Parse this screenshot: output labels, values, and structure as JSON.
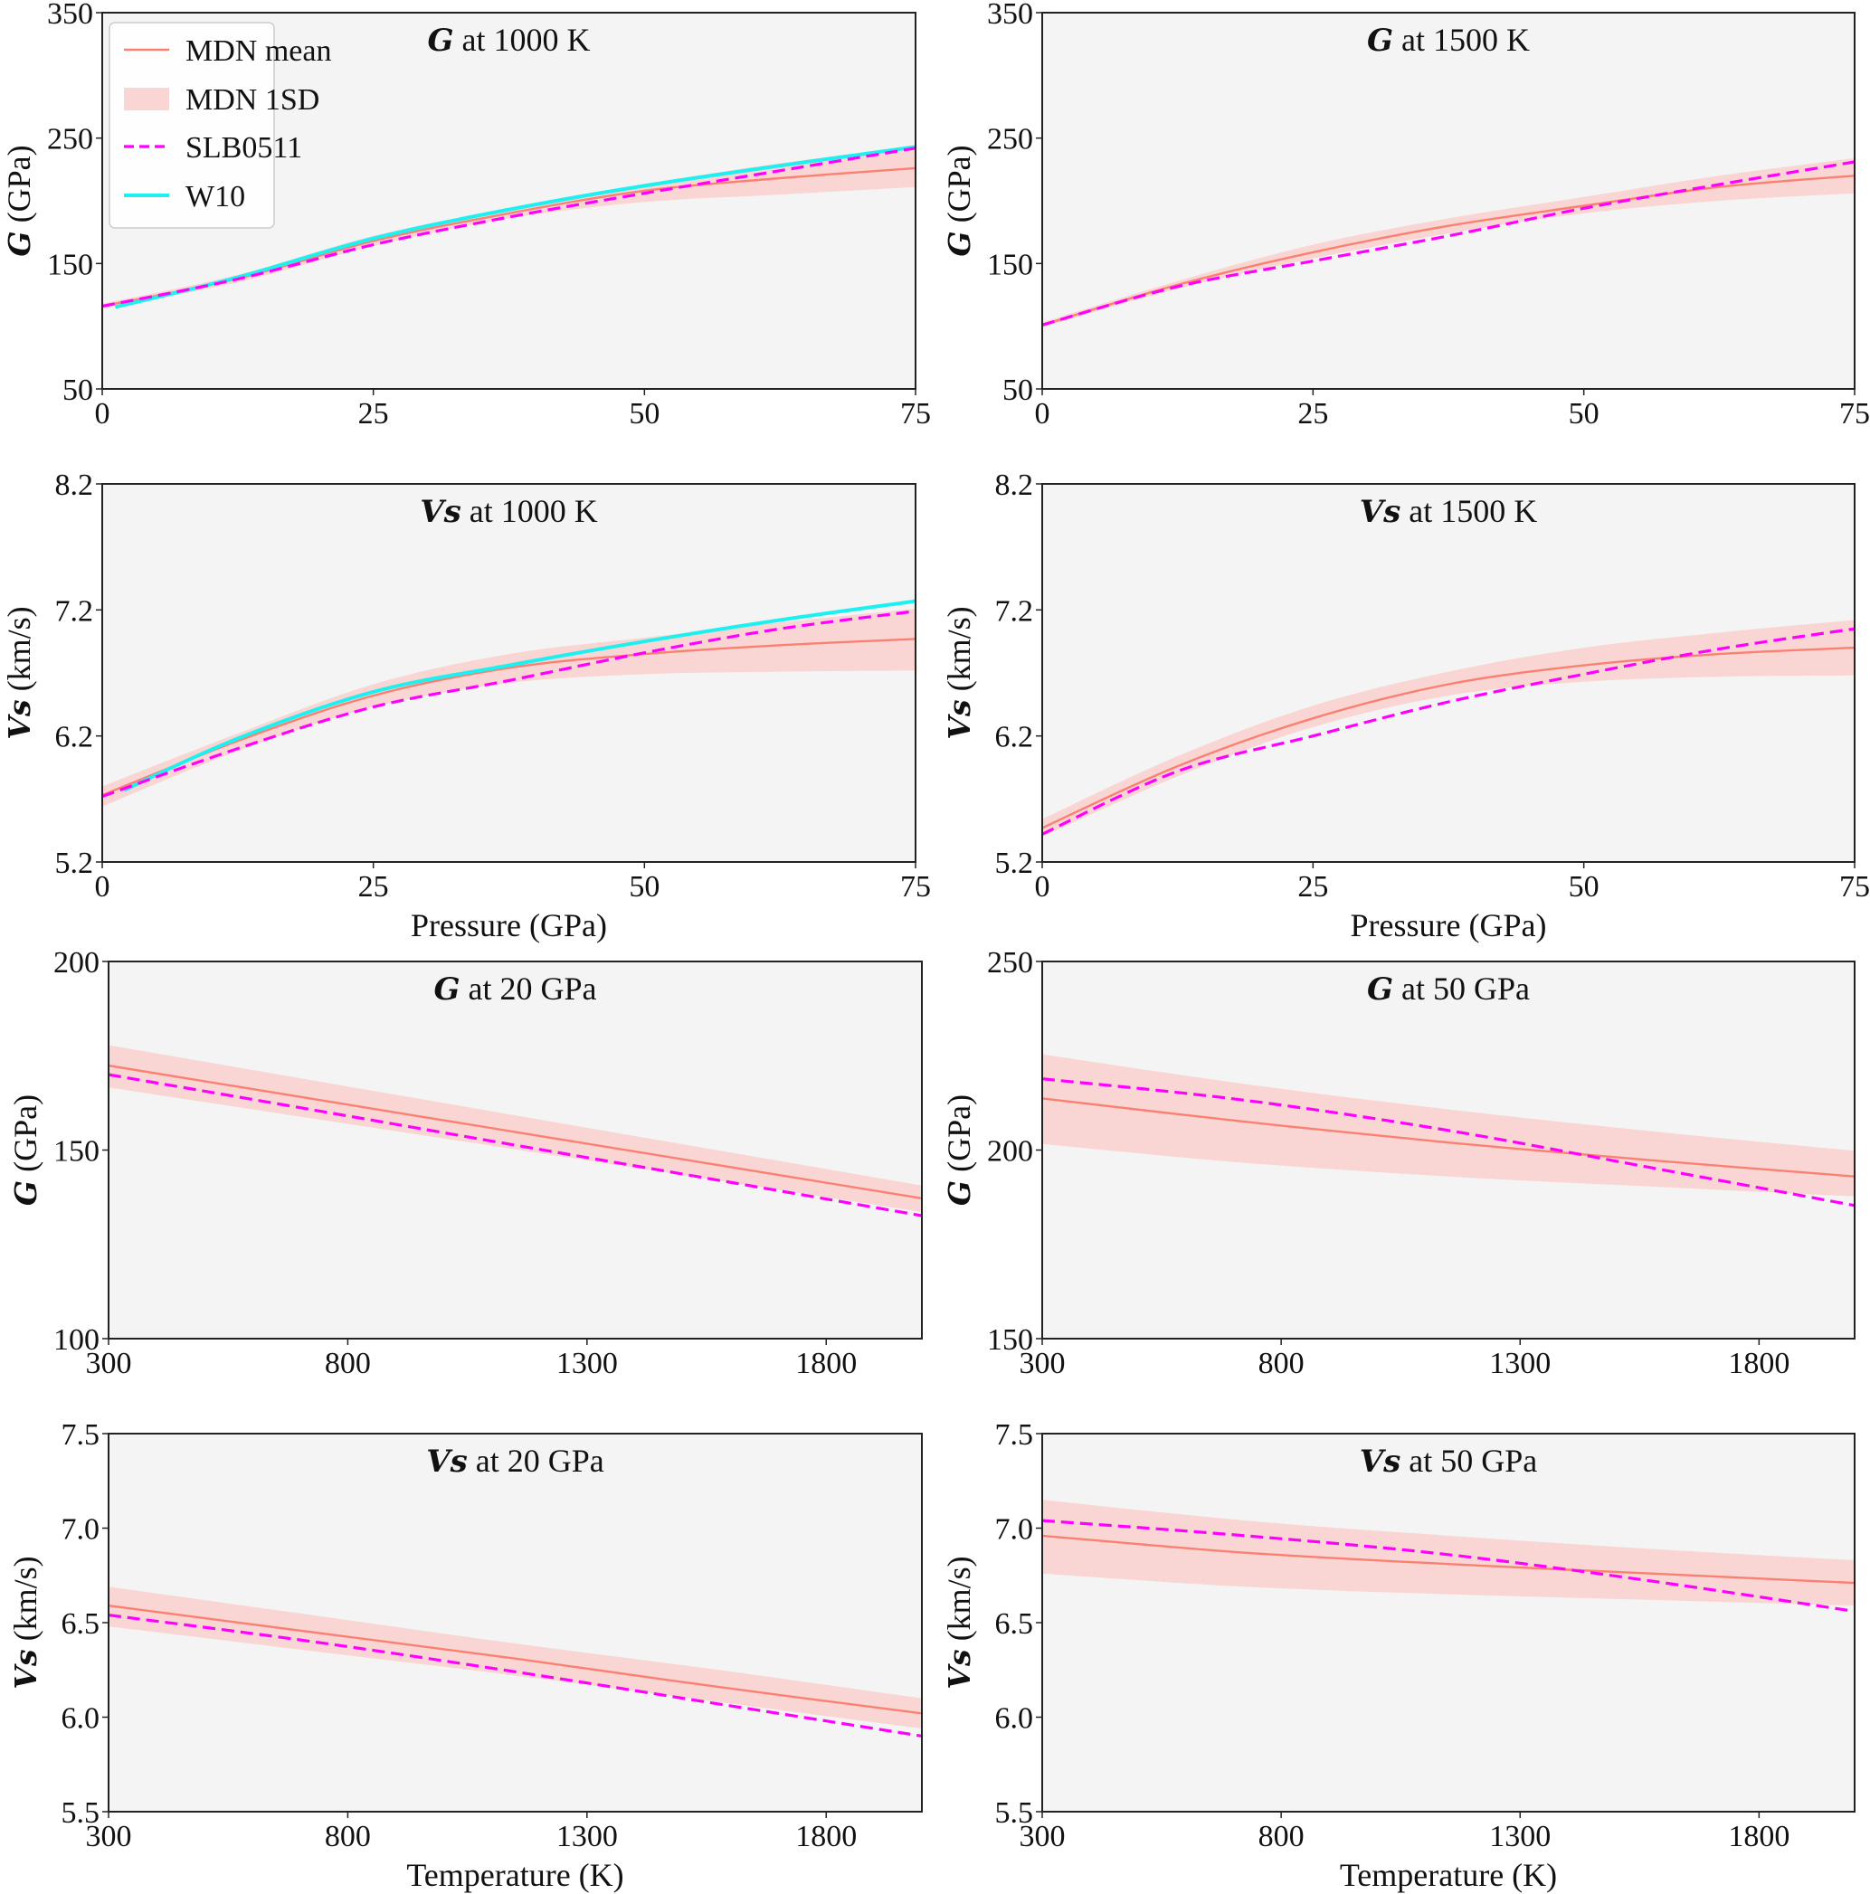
{
  "legend": {
    "entries": [
      {
        "label": "MDN mean",
        "kind": "line",
        "color": "#fa8072"
      },
      {
        "label": "MDN 1SD",
        "kind": "band",
        "color": "#fadbd8"
      },
      {
        "label": "SLB0511",
        "kind": "dashed",
        "color": "#ff00ff"
      },
      {
        "label": "W10",
        "kind": "line",
        "color": "#00f5f5"
      }
    ]
  },
  "colors": {
    "axes_bg": "#f4f4f4",
    "mean": "#fa8072",
    "band": "#f9d6d4",
    "slb": "#ff00ff",
    "w10": "#1ef0f0"
  },
  "chart_data": [
    {
      "type": "line",
      "title_symbol": "G",
      "title_rest": " at 1000 K",
      "ylabel_symbol": "G",
      "ylabel_rest": " (GPa)",
      "xlabel": "",
      "xlim": [
        0,
        75
      ],
      "ylim": [
        50,
        350
      ],
      "xticks": [
        "0",
        "25",
        "50",
        "75"
      ],
      "xtick_values": [
        0,
        25,
        50,
        75
      ],
      "yticks": [
        "50",
        "150",
        "250",
        "350"
      ],
      "ytick_values": [
        50,
        150,
        250,
        350
      ],
      "legend": true,
      "x": [
        0,
        12.5,
        25,
        37.5,
        50,
        62.5,
        75
      ],
      "series": [
        {
          "name": "MDN mean",
          "values": [
            116,
            138,
            168,
            190,
            208,
            218,
            226
          ]
        },
        {
          "name": "MDN 1SD upper",
          "values": [
            118,
            141,
            172,
            194,
            213,
            230,
            243
          ]
        },
        {
          "name": "MDN 1SD lower",
          "values": [
            114,
            135,
            164,
            186,
            199,
            205,
            211
          ]
        },
        {
          "name": "SLB0511",
          "values": [
            116,
            137.6,
            165,
            187,
            206,
            224,
            242
          ]
        },
        {
          "name": "W10",
          "x": [
            1.2,
            12.5,
            25,
            37.5,
            50,
            62.5,
            75
          ],
          "values": [
            115.3,
            139,
            170,
            193,
            212,
            228,
            243
          ]
        }
      ]
    },
    {
      "type": "line",
      "title_symbol": "G",
      "title_rest": " at 1500 K",
      "ylabel_symbol": "G",
      "ylabel_rest": " (GPa)",
      "xlabel": "",
      "xlim": [
        0,
        75
      ],
      "ylim": [
        50,
        350
      ],
      "xticks": [
        "0",
        "25",
        "50",
        "75"
      ],
      "xtick_values": [
        0,
        25,
        50,
        75
      ],
      "yticks": [
        "50",
        "150",
        "250",
        "350"
      ],
      "ytick_values": [
        50,
        150,
        250,
        350
      ],
      "legend": false,
      "x": [
        0,
        12.5,
        25,
        37.5,
        50,
        62.5,
        75
      ],
      "series": [
        {
          "name": "MDN mean",
          "values": [
            101,
            133,
            159,
            180,
            196,
            211,
            220
          ]
        },
        {
          "name": "MDN 1SD upper",
          "values": [
            103,
            136,
            165,
            186,
            203,
            220,
            234
          ]
        },
        {
          "name": "MDN 1SD lower",
          "values": [
            99,
            130,
            154,
            174,
            190,
            200,
            206
          ]
        },
        {
          "name": "SLB0511",
          "values": [
            101,
            131.6,
            152,
            172,
            194,
            213,
            231
          ]
        }
      ]
    },
    {
      "type": "line",
      "title_symbol": "Vs",
      "title_rest": " at 1000 K",
      "ylabel_symbol": "Vs",
      "ylabel_rest": " (km/s)",
      "xlabel": "Pressure (GPa)",
      "xlim": [
        0,
        75
      ],
      "ylim": [
        5.2,
        8.2
      ],
      "xticks": [
        "0",
        "25",
        "50",
        "75"
      ],
      "xtick_values": [
        0,
        25,
        50,
        75
      ],
      "yticks": [
        "5.2",
        "6.2",
        "7.2",
        "8.2"
      ],
      "ytick_values": [
        5.2,
        6.2,
        7.2,
        8.2
      ],
      "legend": false,
      "x": [
        0,
        12.5,
        25,
        37.5,
        50,
        62.5,
        75
      ],
      "series": [
        {
          "name": "MDN mean",
          "values": [
            5.73,
            6.16,
            6.52,
            6.74,
            6.85,
            6.92,
            6.97
          ]
        },
        {
          "name": "MDN 1SD upper",
          "values": [
            5.8,
            6.22,
            6.61,
            6.85,
            6.98,
            7.1,
            7.21
          ]
        },
        {
          "name": "MDN 1SD lower",
          "values": [
            5.64,
            6.08,
            6.43,
            6.62,
            6.69,
            6.71,
            6.72
          ]
        },
        {
          "name": "SLB0511",
          "values": [
            5.72,
            6.1,
            6.43,
            6.64,
            6.86,
            7.05,
            7.19
          ]
        },
        {
          "name": "W10",
          "x": [
            2,
            12.5,
            25,
            37.5,
            50,
            62.5,
            75
          ],
          "values": [
            5.77,
            6.18,
            6.55,
            6.76,
            6.95,
            7.12,
            7.27
          ]
        }
      ]
    },
    {
      "type": "line",
      "title_symbol": "Vs",
      "title_rest": " at 1500 K",
      "ylabel_symbol": "Vs",
      "ylabel_rest": " (km/s)",
      "xlabel": "Pressure (GPa)",
      "xlim": [
        0,
        75
      ],
      "ylim": [
        5.2,
        8.2
      ],
      "xticks": [
        "0",
        "25",
        "50",
        "75"
      ],
      "xtick_values": [
        0,
        25,
        50,
        75
      ],
      "yticks": [
        "5.2",
        "6.2",
        "7.2",
        "8.2"
      ],
      "ytick_values": [
        5.2,
        6.2,
        7.2,
        8.2
      ],
      "legend": false,
      "x": [
        0,
        12.5,
        25,
        37.5,
        50,
        62.5,
        75
      ],
      "series": [
        {
          "name": "MDN mean",
          "values": [
            5.47,
            5.96,
            6.34,
            6.61,
            6.76,
            6.85,
            6.9
          ]
        },
        {
          "name": "MDN 1SD upper",
          "values": [
            5.54,
            6.04,
            6.44,
            6.71,
            6.9,
            7.02,
            7.12
          ]
        },
        {
          "name": "MDN 1SD lower",
          "values": [
            5.4,
            5.88,
            6.27,
            6.52,
            6.63,
            6.67,
            6.68
          ]
        },
        {
          "name": "SLB0511",
          "values": [
            5.42,
            5.92,
            6.2,
            6.47,
            6.69,
            6.89,
            7.05
          ]
        }
      ]
    },
    {
      "type": "line",
      "title_symbol": "G",
      "title_rest": " at 20 GPa",
      "ylabel_symbol": "G",
      "ylabel_rest": " (GPa)",
      "xlabel": "",
      "xlim": [
        300,
        2000
      ],
      "ylim": [
        100,
        200
      ],
      "xticks": [
        "300",
        "800",
        "1300",
        "1800"
      ],
      "xtick_values": [
        300,
        800,
        1300,
        1800
      ],
      "yticks": [
        "100",
        "150",
        "200"
      ],
      "ytick_values": [
        100,
        150,
        200
      ],
      "legend": false,
      "x": [
        300,
        725,
        1150,
        1575,
        2000
      ],
      "series": [
        {
          "name": "MDN mean",
          "values": [
            172.4,
            163.6,
            154.8,
            146.0,
            137.2
          ]
        },
        {
          "name": "MDN 1SD upper",
          "values": [
            177.8,
            168.5,
            159.2,
            149.9,
            140.6
          ]
        },
        {
          "name": "MDN 1SD lower",
          "values": [
            166.6,
            158.4,
            150.2,
            141.9,
            133.6
          ]
        },
        {
          "name": "SLB0511",
          "values": [
            170.0,
            160.7,
            151.3,
            142.0,
            132.6
          ]
        }
      ]
    },
    {
      "type": "line",
      "title_symbol": "G",
      "title_rest": " at 50 GPa",
      "ylabel_symbol": "G",
      "ylabel_rest": " (GPa)",
      "xlabel": "",
      "xlim": [
        300,
        2000
      ],
      "ylim": [
        150,
        250
      ],
      "xticks": [
        "300",
        "800",
        "1300",
        "1800"
      ],
      "xtick_values": [
        300,
        800,
        1300,
        1800
      ],
      "yticks": [
        "150",
        "200",
        "250"
      ],
      "ytick_values": [
        150,
        200,
        250
      ],
      "legend": false,
      "x": [
        300,
        725,
        1150,
        1575,
        2000
      ],
      "series": [
        {
          "name": "MDN mean",
          "values": [
            213.7,
            207.5,
            202.0,
            197.3,
            193.0
          ]
        },
        {
          "name": "MDN 1SD upper",
          "values": [
            225.4,
            217.5,
            210.8,
            205.0,
            199.8
          ]
        },
        {
          "name": "MDN 1SD lower",
          "values": [
            201.6,
            196.6,
            193.0,
            190.3,
            187.7
          ]
        },
        {
          "name": "SLB0511",
          "values": [
            218.9,
            213.2,
            205.2,
            195.3,
            185.3
          ]
        }
      ]
    },
    {
      "type": "line",
      "title_symbol": "Vs",
      "title_rest": " at 20 GPa",
      "ylabel_symbol": "Vs",
      "ylabel_rest": " (km/s)",
      "xlabel": "Temperature (K)",
      "xlim": [
        300,
        2000
      ],
      "ylim": [
        5.5,
        7.5
      ],
      "xticks": [
        "300",
        "800",
        "1300",
        "1800"
      ],
      "xtick_values": [
        300,
        800,
        1300,
        1800
      ],
      "yticks": [
        "5.5",
        "6.0",
        "6.5",
        "7.0",
        "7.5"
      ],
      "ytick_values": [
        5.5,
        6.0,
        6.5,
        7.0,
        7.5
      ],
      "legend": false,
      "x": [
        300,
        725,
        1150,
        1575,
        2000
      ],
      "series": [
        {
          "name": "MDN mean",
          "values": [
            6.59,
            6.45,
            6.31,
            6.16,
            6.02
          ]
        },
        {
          "name": "MDN 1SD upper",
          "values": [
            6.69,
            6.54,
            6.39,
            6.25,
            6.1
          ]
        },
        {
          "name": "MDN 1SD lower",
          "values": [
            6.48,
            6.35,
            6.22,
            6.08,
            5.94
          ]
        },
        {
          "name": "SLB0511",
          "values": [
            6.54,
            6.4,
            6.24,
            6.07,
            5.9
          ]
        }
      ]
    },
    {
      "type": "line",
      "title_symbol": "Vs",
      "title_rest": " at 50 GPa",
      "ylabel_symbol": "Vs",
      "ylabel_rest": " (km/s)",
      "xlabel": "Temperature (K)",
      "xlim": [
        300,
        2000
      ],
      "ylim": [
        5.5,
        7.5
      ],
      "xticks": [
        "300",
        "800",
        "1300",
        "1800"
      ],
      "xtick_values": [
        300,
        800,
        1300,
        1800
      ],
      "yticks": [
        "5.5",
        "6.0",
        "6.5",
        "7.0",
        "7.5"
      ],
      "ytick_values": [
        5.5,
        6.0,
        6.5,
        7.0,
        7.5
      ],
      "legend": false,
      "x": [
        300,
        725,
        1150,
        1575,
        2000
      ],
      "series": [
        {
          "name": "MDN mean",
          "values": [
            6.96,
            6.87,
            6.81,
            6.76,
            6.71
          ]
        },
        {
          "name": "MDN 1SD upper",
          "values": [
            7.15,
            7.04,
            6.96,
            6.89,
            6.83
          ]
        },
        {
          "name": "MDN 1SD lower",
          "values": [
            6.76,
            6.69,
            6.65,
            6.62,
            6.59
          ]
        },
        {
          "name": "SLB0511",
          "values": [
            7.04,
            6.96,
            6.86,
            6.72,
            6.56
          ]
        }
      ]
    }
  ]
}
